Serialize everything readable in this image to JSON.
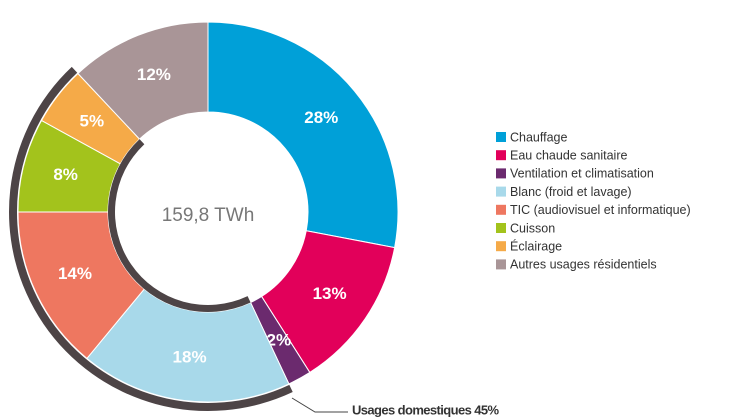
{
  "chart_data": {
    "type": "donut",
    "center_label": "159,8 TWh",
    "annotation": "Usages domestiques 45%",
    "categories": [
      "Chauffage",
      "Eau chaude sanitaire",
      "Ventilation et climatisation",
      "Blanc (froid et lavage)",
      "TIC (audiovisuel et informatique)",
      "Cuisson",
      "Éclairage",
      "Autres usages résidentiels"
    ],
    "values": [
      28,
      13,
      2,
      18,
      14,
      8,
      5,
      12
    ],
    "value_labels": [
      "28%",
      "13%",
      "2%",
      "18%",
      "14%",
      "8%",
      "5%",
      "12%"
    ],
    "colors": [
      "#00a0d8",
      "#e2005a",
      "#6b2a6e",
      "#a8d9ea",
      "#ee7760",
      "#a3c31c",
      "#f5aa48",
      "#a99597"
    ],
    "legend": "right"
  }
}
